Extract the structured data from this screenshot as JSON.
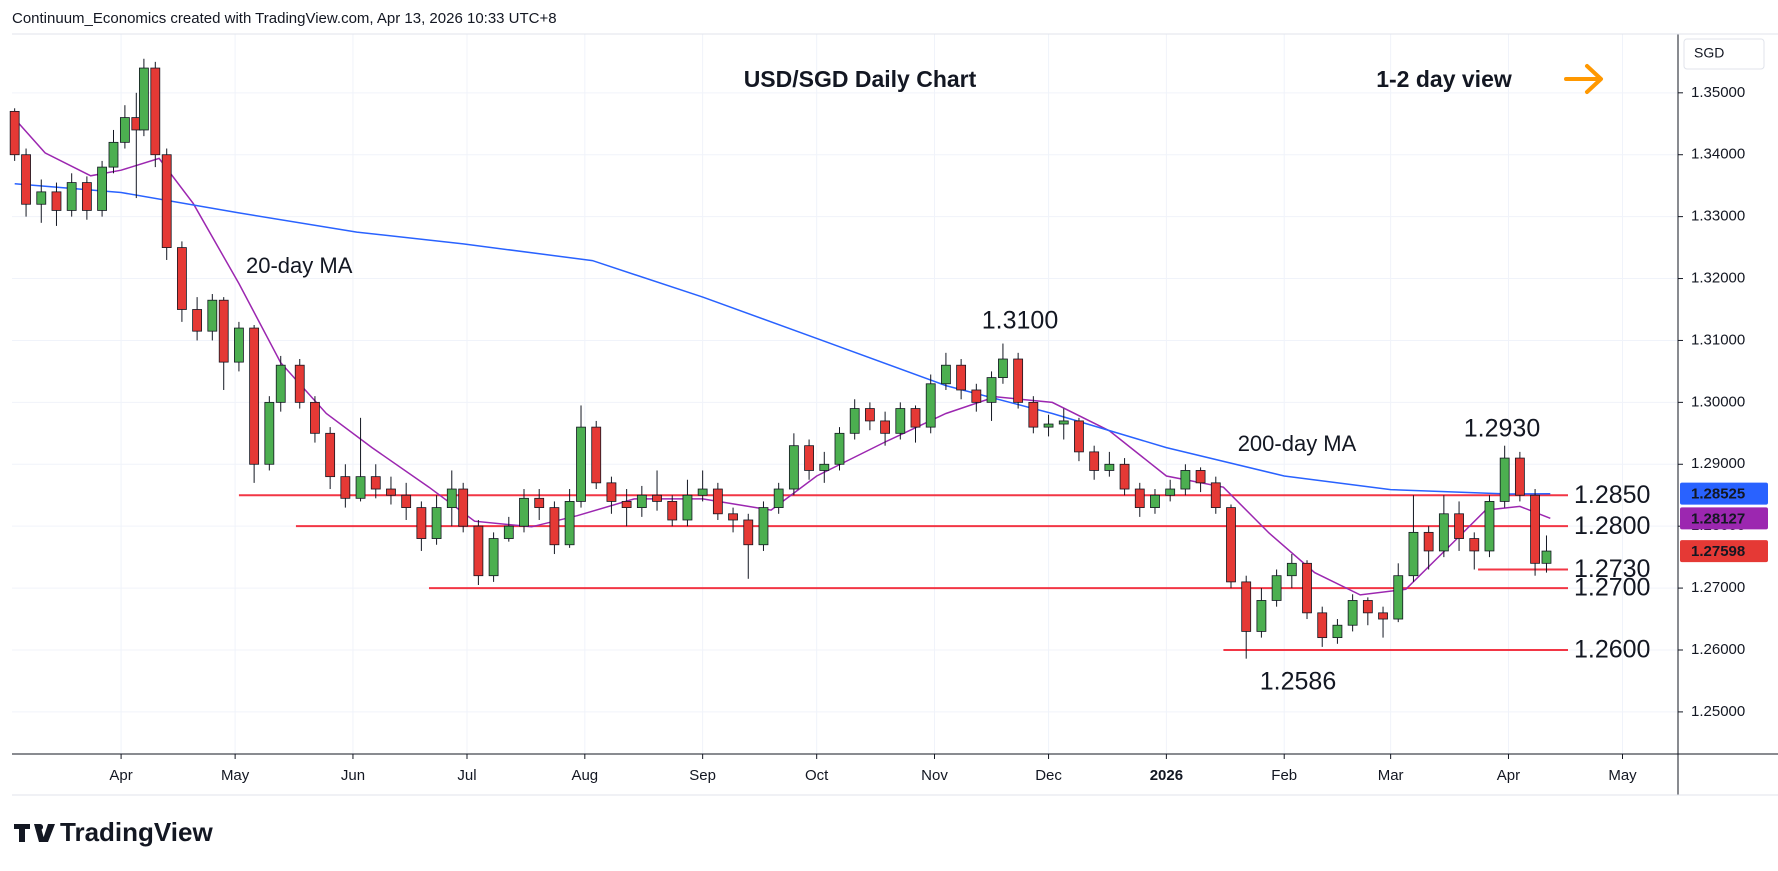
{
  "header": {
    "attribution": "Continuum_Economics created with TradingView.com, Apr 13, 2026 10:33 UTC+8",
    "currency": "SGD",
    "logo": "TradingView"
  },
  "chart_data": {
    "type": "candlestick",
    "title": "USD/SGD Daily Chart",
    "subtitle": "1-2 day view",
    "xlim": [
      2.3,
      440.6
    ],
    "xticks": [
      {
        "value": 31,
        "label": "Apr"
      },
      {
        "value": 61,
        "label": "May"
      },
      {
        "value": 92,
        "label": "Jun"
      },
      {
        "value": 122,
        "label": "Jul"
      },
      {
        "value": 153,
        "label": "Aug"
      },
      {
        "value": 184,
        "label": "Sep"
      },
      {
        "value": 214,
        "label": "Oct"
      },
      {
        "value": 245,
        "label": "Nov"
      },
      {
        "value": 275,
        "label": "Dec"
      },
      {
        "value": 306,
        "label": "2026"
      },
      {
        "value": 337,
        "label": "Feb"
      },
      {
        "value": 365,
        "label": "Mar"
      },
      {
        "value": 396,
        "label": "Apr"
      },
      {
        "value": 426,
        "label": "May"
      }
    ],
    "ylim": [
      1.2432,
      1.3595
    ],
    "yticks": [
      {
        "value": 1.25,
        "label": "1.25000"
      },
      {
        "value": 1.26,
        "label": "1.26000"
      },
      {
        "value": 1.27,
        "label": "1.27000"
      },
      {
        "value": 1.28,
        "label": "1.28000"
      },
      {
        "value": 1.29,
        "label": "1.29000"
      },
      {
        "value": 1.3,
        "label": "1.30000"
      },
      {
        "value": 1.31,
        "label": "1.31000"
      },
      {
        "value": 1.32,
        "label": "1.32000"
      },
      {
        "value": 1.33,
        "label": "1.33000"
      },
      {
        "value": 1.34,
        "label": "1.34000"
      },
      {
        "value": 1.35,
        "label": "1.35000"
      }
    ],
    "grid": true,
    "up_color": "#4caf50",
    "down_color": "#e53935",
    "x": [
      3,
      6,
      10,
      14,
      18,
      22,
      26,
      29,
      32,
      35,
      37,
      40,
      43,
      47,
      51,
      55,
      58,
      62,
      66,
      70,
      73,
      78,
      82,
      86,
      90,
      94,
      98,
      102,
      106,
      110,
      114,
      118,
      121,
      125,
      129,
      133,
      137,
      141,
      145,
      149,
      152,
      156,
      160,
      164,
      168,
      172,
      176,
      180,
      184,
      188,
      192,
      196,
      200,
      204,
      208,
      212,
      216,
      220,
      224,
      228,
      232,
      236,
      240,
      244,
      248,
      252,
      256,
      260,
      263,
      267,
      271,
      275,
      279,
      283,
      287,
      291,
      295,
      299,
      303,
      307,
      311,
      315,
      319,
      323,
      327,
      331,
      335,
      339,
      343,
      347,
      351,
      355,
      359,
      363,
      367,
      371,
      375,
      379,
      383,
      387,
      391,
      395,
      399,
      403,
      406
    ],
    "open": [
      1.347,
      1.34,
      1.332,
      1.334,
      1.331,
      1.3355,
      1.331,
      1.338,
      1.342,
      1.346,
      1.344,
      1.354,
      1.34,
      1.325,
      1.315,
      1.3115,
      1.3165,
      1.3065,
      1.312,
      1.29,
      1.3,
      1.306,
      1.3,
      1.295,
      1.288,
      1.2845,
      1.288,
      1.286,
      1.285,
      1.283,
      1.278,
      1.283,
      1.286,
      1.28,
      1.272,
      1.278,
      1.28,
      1.2845,
      1.283,
      1.277,
      1.284,
      1.296,
      1.287,
      1.284,
      1.283,
      1.285,
      1.284,
      1.281,
      1.285,
      1.286,
      1.282,
      1.281,
      1.277,
      1.283,
      1.286,
      1.293,
      1.289,
      1.29,
      1.295,
      1.299,
      1.297,
      1.295,
      1.299,
      1.296,
      1.303,
      1.306,
      1.302,
      1.3,
      1.304,
      1.307,
      1.3,
      1.296,
      1.2965,
      1.297,
      1.292,
      1.289,
      1.29,
      1.286,
      1.283,
      1.285,
      1.286,
      1.289,
      1.287,
      1.283,
      1.271,
      1.263,
      1.268,
      1.272,
      1.274,
      1.266,
      1.262,
      1.264,
      1.268,
      1.266,
      1.265,
      1.272,
      1.279,
      1.276,
      1.282,
      1.278,
      1.276,
      1.284,
      1.291,
      1.285,
      1.274
    ],
    "high": [
      1.3475,
      1.341,
      1.336,
      1.3355,
      1.337,
      1.3365,
      1.339,
      1.344,
      1.348,
      1.35,
      1.3555,
      1.355,
      1.341,
      1.326,
      1.317,
      1.3175,
      1.317,
      1.313,
      1.3125,
      1.301,
      1.3075,
      1.307,
      1.301,
      1.296,
      1.29,
      1.2975,
      1.29,
      1.288,
      1.287,
      1.284,
      1.285,
      1.289,
      1.287,
      1.281,
      1.279,
      1.2815,
      1.286,
      1.286,
      1.284,
      1.286,
      1.2995,
      1.297,
      1.288,
      1.286,
      1.2865,
      1.289,
      1.285,
      1.2875,
      1.289,
      1.287,
      1.283,
      1.282,
      1.284,
      1.287,
      1.295,
      1.294,
      1.292,
      1.296,
      1.3005,
      1.3,
      1.2985,
      1.3,
      1.2995,
      1.3045,
      1.308,
      1.307,
      1.303,
      1.305,
      1.3095,
      1.308,
      1.301,
      1.298,
      1.299,
      1.2975,
      1.293,
      1.292,
      1.291,
      1.287,
      1.286,
      1.2875,
      1.29,
      1.2895,
      1.288,
      1.2835,
      1.272,
      1.27,
      1.273,
      1.2755,
      1.2745,
      1.267,
      1.265,
      1.269,
      1.2685,
      1.267,
      1.274,
      1.285,
      1.28,
      1.285,
      1.284,
      1.279,
      1.285,
      1.293,
      1.292,
      1.286,
      1.2785
    ],
    "low": [
      1.339,
      1.33,
      1.329,
      1.3285,
      1.33,
      1.3295,
      1.33,
      1.337,
      1.341,
      1.333,
      1.343,
      1.338,
      1.323,
      1.313,
      1.31,
      1.31,
      1.302,
      1.305,
      1.287,
      1.289,
      1.2985,
      1.299,
      1.2935,
      1.286,
      1.283,
      1.284,
      1.2845,
      1.2835,
      1.281,
      1.276,
      1.277,
      1.28,
      1.279,
      1.2705,
      1.271,
      1.2775,
      1.279,
      1.281,
      1.2755,
      1.2765,
      1.283,
      1.286,
      1.282,
      1.28,
      1.2815,
      1.2825,
      1.28,
      1.28,
      1.284,
      1.281,
      1.279,
      1.2715,
      1.276,
      1.282,
      1.285,
      1.2875,
      1.287,
      1.289,
      1.294,
      1.2955,
      1.293,
      1.294,
      1.2935,
      1.295,
      1.302,
      1.3005,
      1.2985,
      1.297,
      1.303,
      1.299,
      1.295,
      1.2945,
      1.294,
      1.2905,
      1.2875,
      1.288,
      1.285,
      1.2815,
      1.282,
      1.284,
      1.285,
      1.2855,
      1.282,
      1.27,
      1.2586,
      1.262,
      1.267,
      1.27,
      1.265,
      1.2605,
      1.261,
      1.263,
      1.264,
      1.262,
      1.2645,
      1.271,
      1.273,
      1.275,
      1.276,
      1.273,
      1.275,
      1.283,
      1.284,
      1.272,
      1.2725
    ],
    "close": [
      1.34,
      1.332,
      1.334,
      1.331,
      1.3355,
      1.331,
      1.338,
      1.342,
      1.346,
      1.344,
      1.354,
      1.34,
      1.325,
      1.315,
      1.3115,
      1.3165,
      1.3065,
      1.312,
      1.29,
      1.3,
      1.306,
      1.3,
      1.295,
      1.288,
      1.2845,
      1.288,
      1.286,
      1.285,
      1.283,
      1.278,
      1.283,
      1.286,
      1.28,
      1.272,
      1.278,
      1.28,
      1.2845,
      1.283,
      1.277,
      1.284,
      1.296,
      1.287,
      1.284,
      1.283,
      1.285,
      1.284,
      1.281,
      1.285,
      1.286,
      1.282,
      1.281,
      1.277,
      1.283,
      1.286,
      1.293,
      1.289,
      1.29,
      1.295,
      1.299,
      1.297,
      1.295,
      1.299,
      1.296,
      1.303,
      1.306,
      1.302,
      1.3,
      1.304,
      1.307,
      1.3,
      1.296,
      1.2965,
      1.297,
      1.292,
      1.289,
      1.29,
      1.286,
      1.283,
      1.285,
      1.286,
      1.289,
      1.287,
      1.283,
      1.271,
      1.263,
      1.268,
      1.272,
      1.274,
      1.266,
      1.262,
      1.264,
      1.268,
      1.266,
      1.265,
      1.272,
      1.279,
      1.276,
      1.282,
      1.278,
      1.276,
      1.284,
      1.291,
      1.285,
      1.274,
      1.27598
    ],
    "series": [
      {
        "name": "20-day MA",
        "color": "#9c27b0",
        "x": [
          3,
          11,
          23,
          31,
          41,
          50,
          62,
          73,
          85,
          97,
          112,
          124,
          139,
          151,
          166,
          184,
          202,
          214,
          232,
          248,
          261,
          276,
          291,
          306,
          321,
          333,
          345,
          357,
          369,
          381,
          390,
          399,
          407
        ],
        "values": [
          1.3458,
          1.3403,
          1.3366,
          1.3375,
          1.3394,
          1.3321,
          1.3192,
          1.3064,
          1.2982,
          1.2927,
          1.2863,
          1.2808,
          1.2799,
          1.2817,
          1.2844,
          1.2844,
          1.2826,
          1.2881,
          1.2936,
          1.2982,
          1.3009,
          1.3,
          1.2954,
          1.2881,
          1.2863,
          1.2789,
          1.2725,
          1.2689,
          1.2698,
          1.2771,
          1.2826,
          1.2832,
          1.28127
        ]
      },
      {
        "name": "200-day MA",
        "color": "#2962ff",
        "x": [
          3,
          31,
          62,
          93,
          121,
          155,
          184,
          215,
          248,
          276,
          306,
          337,
          365,
          396,
          407
        ],
        "values": [
          1.3353,
          1.3339,
          1.3306,
          1.3275,
          1.3256,
          1.3229,
          1.317,
          1.3101,
          1.3027,
          1.2982,
          1.2927,
          1.2881,
          1.2859,
          1.2852,
          1.28525
        ]
      }
    ],
    "price_tags": [
      {
        "value": 1.28525,
        "color": "#2962ff"
      },
      {
        "value": 1.28127,
        "color": "#9c27b0"
      },
      {
        "value": 1.27598,
        "color": "#e53935"
      }
    ],
    "level_color": "#f23645",
    "levels": [
      {
        "value": 1.285,
        "label": "1.2850",
        "start": 62
      },
      {
        "value": 1.28,
        "label": "1.2800",
        "start": 77
      },
      {
        "value": 1.273,
        "label": "1.2730",
        "start": 388
      },
      {
        "value": 1.27,
        "label": "1.2700",
        "start": 112
      },
      {
        "value": 1.26,
        "label": "1.2600",
        "start": 321
      }
    ],
    "annotations": [
      "1.3100",
      "1.2930",
      "1.2586",
      "20-day MA",
      "200-day MA"
    ]
  }
}
